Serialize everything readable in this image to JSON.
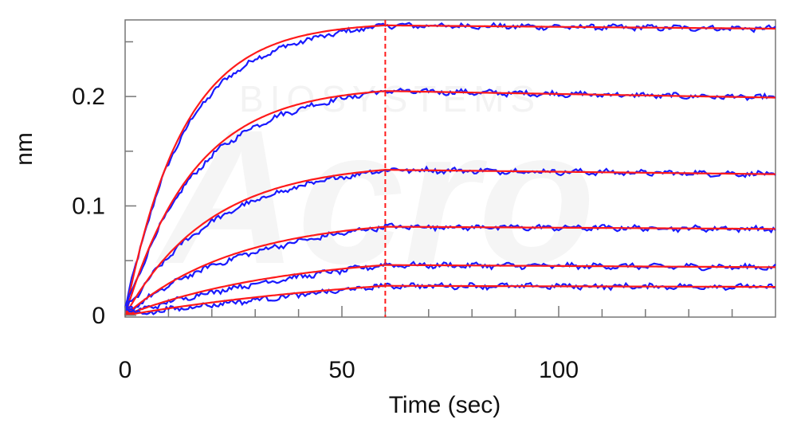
{
  "chart_data": {
    "type": "line",
    "title": "",
    "xlabel": "Time (sec)",
    "ylabel": "nm",
    "xlim": [
      0,
      150
    ],
    "ylim": [
      -0.0016,
      0.27
    ],
    "x_ticks": [
      0,
      50,
      100
    ],
    "y_ticks": [
      0,
      0.1,
      0.2
    ],
    "x_tick_labels": [
      "0",
      "50",
      "100"
    ],
    "y_tick_labels": [
      "0",
      "0.1",
      "0.2"
    ],
    "association_end": 60,
    "grid": false,
    "legend": "none",
    "colors": {
      "measured": "#1a1aff",
      "fit": "#ff1a1a",
      "axis": "#777777",
      "watermark": "#eeeeee"
    },
    "series": [
      {
        "association_plateau": 0.265,
        "dissociation_end": 0.262
      },
      {
        "association_plateau": 0.205,
        "dissociation_end": 0.199
      },
      {
        "association_plateau": 0.133,
        "dissociation_end": 0.129
      },
      {
        "association_plateau": 0.081,
        "dissociation_end": 0.079
      },
      {
        "association_plateau": 0.046,
        "dissociation_end": 0.044
      },
      {
        "association_plateau": 0.027,
        "dissociation_end": 0.026
      }
    ]
  },
  "watermark": {
    "logo_text": "Acro",
    "subtitle": "BIOSYSTEMS"
  }
}
